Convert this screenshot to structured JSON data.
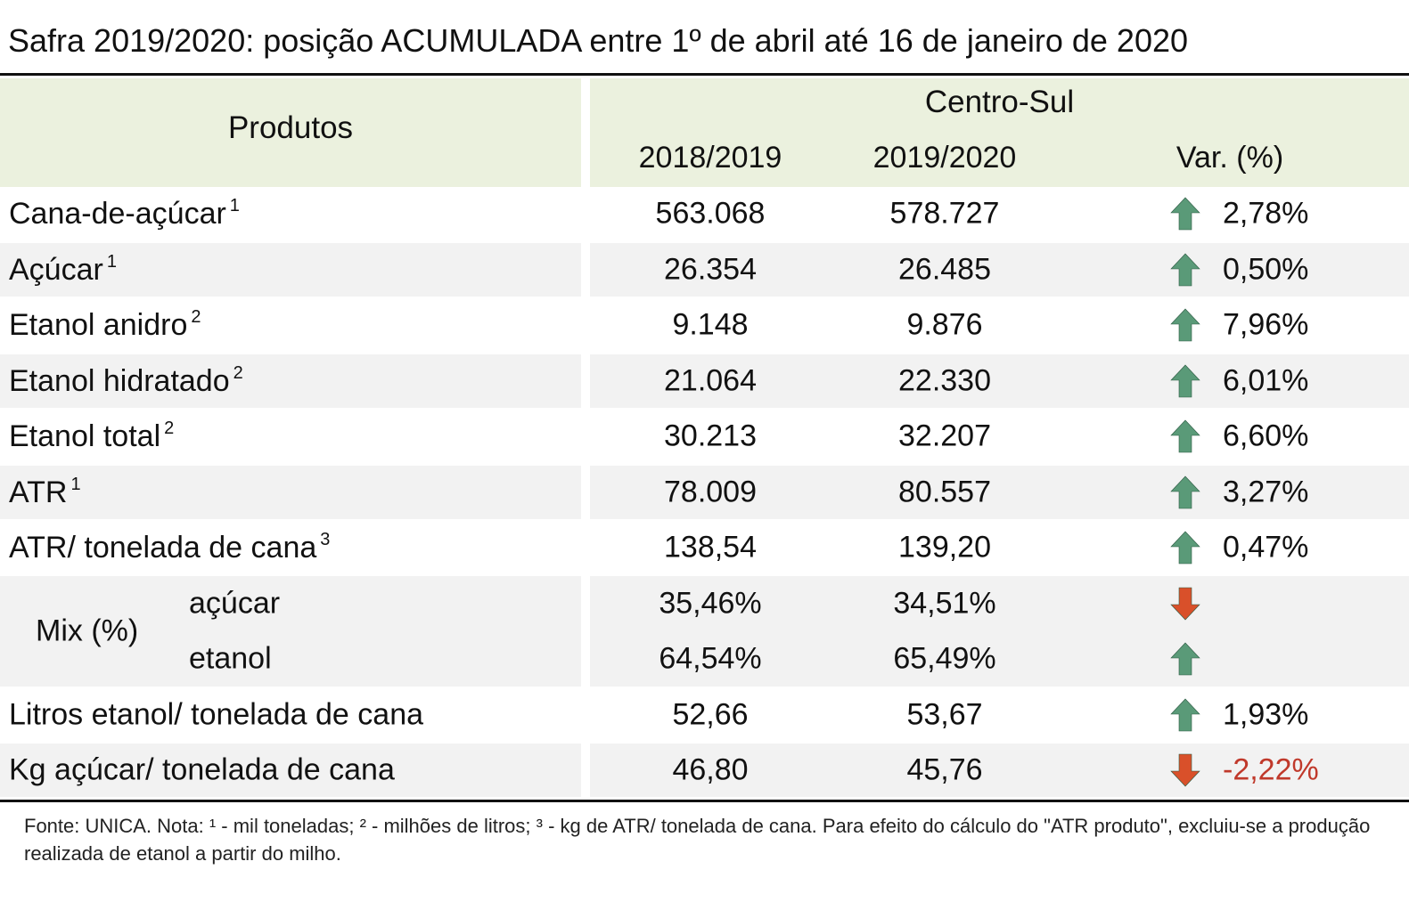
{
  "title": "Safra 2019/2020: posição ACUMULADA entre 1º de abril até 16 de janeiro de 2020",
  "header": {
    "products": "Produtos",
    "region": "Centro-Sul",
    "col_prev": "2018/2019",
    "col_curr": "2019/2020",
    "col_var": "Var. (%)"
  },
  "rows": [
    {
      "label": "Cana-de-açúcar",
      "note": "1",
      "prev": "563.068",
      "curr": "578.727",
      "trend": "up",
      "var": "2,78%"
    },
    {
      "label": "Açúcar",
      "note": "1",
      "prev": "26.354",
      "curr": "26.485",
      "trend": "up",
      "var": "0,50%"
    },
    {
      "label": "Etanol anidro",
      "note": "2",
      "prev": "9.148",
      "curr": "9.876",
      "trend": "up",
      "var": "7,96%"
    },
    {
      "label": "Etanol hidratado",
      "note": "2",
      "prev": "21.064",
      "curr": "22.330",
      "trend": "up",
      "var": "6,01%"
    },
    {
      "label": "Etanol total",
      "note": "2",
      "prev": "30.213",
      "curr": "32.207",
      "trend": "up",
      "var": "6,60%"
    },
    {
      "label": "ATR",
      "note": "1",
      "prev": "78.009",
      "curr": "80.557",
      "trend": "up",
      "var": "3,27%"
    },
    {
      "label": "ATR/ tonelada de cana",
      "note": "3",
      "prev": "138,54",
      "curr": "139,20",
      "trend": "up",
      "var": "0,47%"
    }
  ],
  "mix": {
    "label": "Mix (%)",
    "items": [
      {
        "label": "açúcar",
        "prev": "35,46%",
        "curr": "34,51%",
        "trend": "down"
      },
      {
        "label": "etanol",
        "prev": "64,54%",
        "curr": "65,49%",
        "trend": "up"
      }
    ]
  },
  "rows_after": [
    {
      "label": "Litros etanol/ tonelada de cana",
      "prev": "52,66",
      "curr": "53,67",
      "trend": "up",
      "var": "1,93%"
    },
    {
      "label": "Kg açúcar/ tonelada de cana",
      "prev": "46,80",
      "curr": "45,76",
      "trend": "down",
      "var": "-2,22%"
    }
  ],
  "colors": {
    "header_bg": "#ebf1de",
    "row_shade": "#f2f2f2",
    "arrow_up": "#5a9a78",
    "arrow_down": "#d9502a",
    "negative_text": "#c0392b"
  },
  "icons": {
    "up": "arrow-up-icon",
    "down": "arrow-down-icon"
  },
  "footnote": "Fonte: UNICA. Nota: ¹ - mil toneladas; ² - milhões de litros; ³ - kg de ATR/ tonelada de cana. Para efeito do cálculo do \"ATR produto\", excluiu-se a produção realizada de etanol a partir do milho."
}
